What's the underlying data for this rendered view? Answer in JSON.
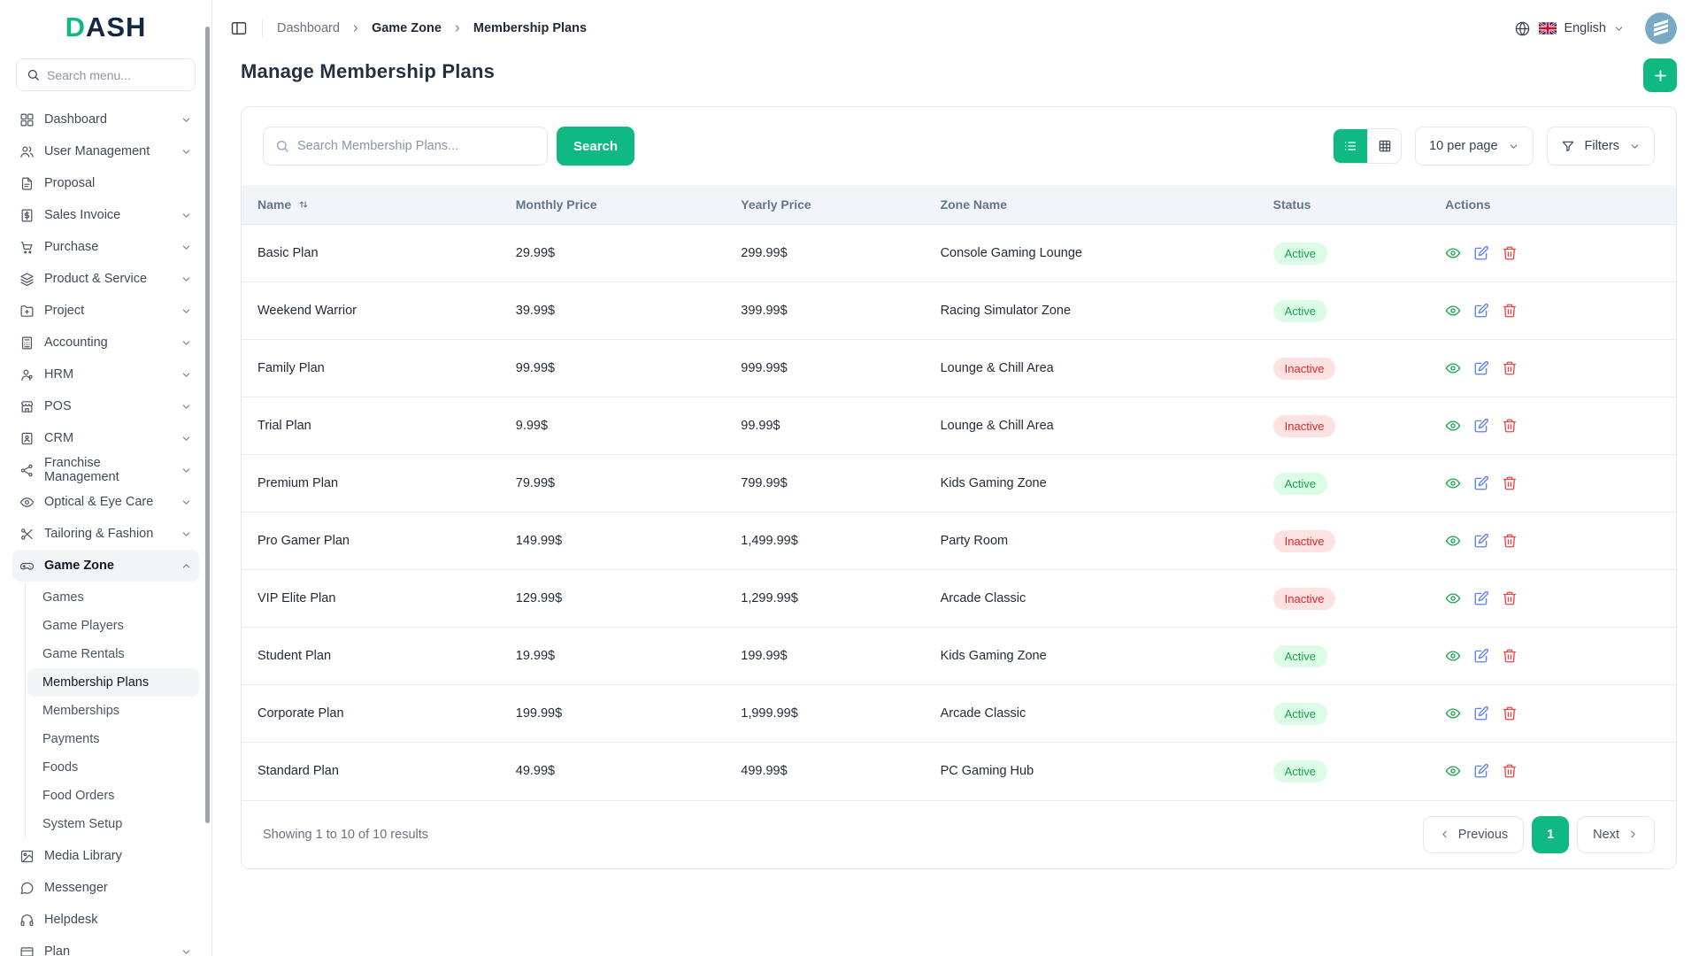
{
  "brand": {
    "logo_d": "D",
    "logo_rest": "ASH"
  },
  "colors": {
    "accent": "#10b981",
    "active_badge_bg": "#dcfce7",
    "active_badge_text": "#16a34a",
    "inactive_badge_bg": "#fee2e2",
    "inactive_badge_text": "#dc2626",
    "view_icon": "#16a34a",
    "edit_icon": "#5b7df5",
    "delete_icon": "#ef4444"
  },
  "icons": {
    "panel-toggle-icon": "sidebar panel square",
    "globe-icon": "globe",
    "uk-flag-icon": "united kingdom flag",
    "chevron-down-icon": "v",
    "chevron-up-icon": "^",
    "chevron-left-icon": "<",
    "chevron-right-icon": ">",
    "search-icon": "magnifier",
    "plus-icon": "+",
    "list-view-icon": "bulleted list",
    "grid-view-icon": "grid",
    "filter-icon": "funnel",
    "sort-icon": "up-down arrows",
    "eye-icon": "eye",
    "edit-icon": "pencil in square",
    "trash-icon": "trash can"
  },
  "sidebar": {
    "search_placeholder": "Search menu...",
    "items": [
      {
        "id": "dashboard",
        "label": "Dashboard",
        "icon": "dashboard-icon",
        "chevron": "down"
      },
      {
        "id": "user-management",
        "label": "User Management",
        "icon": "users-icon",
        "chevron": "down"
      },
      {
        "id": "proposal",
        "label": "Proposal",
        "icon": "proposal-icon"
      },
      {
        "id": "sales-invoice",
        "label": "Sales Invoice",
        "icon": "invoice-icon",
        "chevron": "down"
      },
      {
        "id": "purchase",
        "label": "Purchase",
        "icon": "cart-icon",
        "chevron": "down"
      },
      {
        "id": "product-service",
        "label": "Product & Service",
        "icon": "layers-icon",
        "chevron": "down"
      },
      {
        "id": "project",
        "label": "Project",
        "icon": "folder-icon",
        "chevron": "down"
      },
      {
        "id": "accounting",
        "label": "Accounting",
        "icon": "calculator-icon",
        "chevron": "down"
      },
      {
        "id": "hrm",
        "label": "HRM",
        "icon": "person-icon",
        "chevron": "down"
      },
      {
        "id": "pos",
        "label": "POS",
        "icon": "store-icon",
        "chevron": "down"
      },
      {
        "id": "crm",
        "label": "CRM",
        "icon": "id-card-icon",
        "chevron": "down"
      },
      {
        "id": "franchise-management",
        "label": "Franchise Management",
        "icon": "share-icon",
        "chevron": "down"
      },
      {
        "id": "optical-eye-care",
        "label": "Optical & Eye Care",
        "icon": "eye-icon",
        "chevron": "down"
      },
      {
        "id": "tailoring-fashion",
        "label": "Tailoring & Fashion",
        "icon": "scissors-icon",
        "chevron": "down"
      },
      {
        "id": "game-zone",
        "label": "Game Zone",
        "icon": "gamepad-icon",
        "chevron": "up",
        "active": true,
        "children": [
          {
            "id": "games",
            "label": "Games"
          },
          {
            "id": "game-players",
            "label": "Game Players"
          },
          {
            "id": "game-rentals",
            "label": "Game Rentals"
          },
          {
            "id": "membership-plans",
            "label": "Membership Plans",
            "active": true
          },
          {
            "id": "memberships",
            "label": "Memberships"
          },
          {
            "id": "payments",
            "label": "Payments"
          },
          {
            "id": "foods",
            "label": "Foods"
          },
          {
            "id": "food-orders",
            "label": "Food Orders"
          },
          {
            "id": "system-setup",
            "label": "System Setup"
          }
        ]
      },
      {
        "id": "media-library",
        "label": "Media Library",
        "icon": "image-icon"
      },
      {
        "id": "messenger",
        "label": "Messenger",
        "icon": "chat-icon"
      },
      {
        "id": "helpdesk",
        "label": "Helpdesk",
        "icon": "headset-icon"
      },
      {
        "id": "plan",
        "label": "Plan",
        "icon": "plan-icon",
        "chevron": "down"
      }
    ]
  },
  "topbar": {
    "breadcrumb": [
      {
        "label": "Dashboard",
        "current": false,
        "interactable": true
      },
      {
        "label": "Game Zone",
        "current": true,
        "interactable": true
      },
      {
        "label": "Membership Plans",
        "current": true,
        "interactable": false
      }
    ],
    "language": "English"
  },
  "page": {
    "title": "Manage Membership Plans"
  },
  "toolbar": {
    "search_placeholder": "Search Membership Plans...",
    "search_button": "Search",
    "per_page": "10 per page",
    "filters_label": "Filters"
  },
  "table": {
    "columns": [
      "Name",
      "Monthly Price",
      "Yearly Price",
      "Zone Name",
      "Status",
      "Actions"
    ],
    "rows": [
      {
        "name": "Basic Plan",
        "monthly_price": "29.99$",
        "yearly_price": "299.99$",
        "zone": "Console Gaming Lounge",
        "status": "Active"
      },
      {
        "name": "Weekend Warrior",
        "monthly_price": "39.99$",
        "yearly_price": "399.99$",
        "zone": "Racing Simulator Zone",
        "status": "Active"
      },
      {
        "name": "Family Plan",
        "monthly_price": "99.99$",
        "yearly_price": "999.99$",
        "zone": "Lounge & Chill Area",
        "status": "Inactive"
      },
      {
        "name": "Trial Plan",
        "monthly_price": "9.99$",
        "yearly_price": "99.99$",
        "zone": "Lounge & Chill Area",
        "status": "Inactive"
      },
      {
        "name": "Premium Plan",
        "monthly_price": "79.99$",
        "yearly_price": "799.99$",
        "zone": "Kids Gaming Zone",
        "status": "Active"
      },
      {
        "name": "Pro Gamer Plan",
        "monthly_price": "149.99$",
        "yearly_price": "1,499.99$",
        "zone": "Party Room",
        "status": "Inactive"
      },
      {
        "name": "VIP Elite Plan",
        "monthly_price": "129.99$",
        "yearly_price": "1,299.99$",
        "zone": "Arcade Classic",
        "status": "Inactive"
      },
      {
        "name": "Student Plan",
        "monthly_price": "19.99$",
        "yearly_price": "199.99$",
        "zone": "Kids Gaming Zone",
        "status": "Active"
      },
      {
        "name": "Corporate Plan",
        "monthly_price": "199.99$",
        "yearly_price": "1,999.99$",
        "zone": "Arcade Classic",
        "status": "Active"
      },
      {
        "name": "Standard Plan",
        "monthly_price": "49.99$",
        "yearly_price": "499.99$",
        "zone": "PC Gaming Hub",
        "status": "Active"
      }
    ]
  },
  "footer": {
    "summary": "Showing 1 to 10 of 10 results",
    "previous_label": "Previous",
    "current_page": "1",
    "next_label": "Next"
  }
}
